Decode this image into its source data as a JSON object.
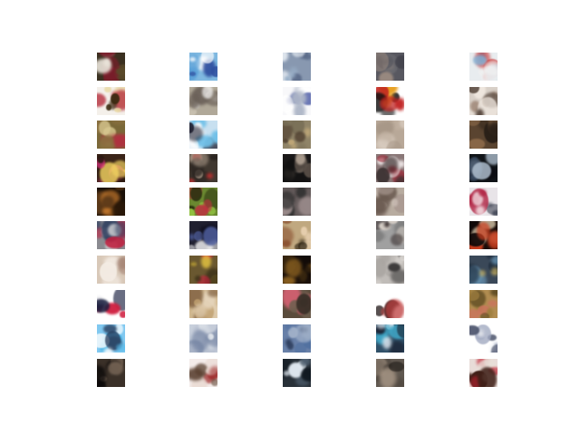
{
  "figure": {
    "grid": {
      "rows": 10,
      "cols": 5
    },
    "tiles": [
      {
        "palette": [
          "#5a4a2a",
          "#7b1d2a",
          "#e8e2d8"
        ],
        "bg": "#3a3020"
      },
      {
        "palette": [
          "#5aa0d8",
          "#ffffff",
          "#3050a0"
        ],
        "bg": "#7fb8e0"
      },
      {
        "palette": [
          "#9ab0c8",
          "#5a6a88",
          "#dfe6ee"
        ],
        "bg": "#8898b0"
      },
      {
        "palette": [
          "#6a6a70",
          "#9a8a80",
          "#40404a"
        ],
        "bg": "#585860"
      },
      {
        "palette": [
          "#c83030",
          "#7ab8e0",
          "#f0f0f0"
        ],
        "bg": "#e8ecef"
      },
      {
        "palette": [
          "#b02030",
          "#3a2a10",
          "#e8d8a0"
        ],
        "bg": "#f4f0ea"
      },
      {
        "palette": [
          "#c8c0b0",
          "#6a6058",
          "#ffffff"
        ],
        "bg": "#b0a898"
      },
      {
        "palette": [
          "#4050a0",
          "#ffffff",
          "#b0b8c8"
        ],
        "bg": "#f8f8fa"
      },
      {
        "palette": [
          "#101010",
          "#e8a020",
          "#c02020"
        ],
        "bg": "#ffffff"
      },
      {
        "palette": [
          "#a08878",
          "#f0e8e0",
          "#5a4a40"
        ],
        "bg": "#d8d0c8"
      },
      {
        "palette": [
          "#8a7040",
          "#b03040",
          "#d8c890"
        ],
        "bg": "#7a6838"
      },
      {
        "palette": [
          "#70c0e8",
          "#ffffff",
          "#202030"
        ],
        "bg": "#c8e0f0"
      },
      {
        "palette": [
          "#7a7058",
          "#c0a878",
          "#504030"
        ],
        "bg": "#908468"
      },
      {
        "palette": [
          "#c0b0a0",
          "#a89888",
          "#dcd0c4"
        ],
        "bg": "#b8a898"
      },
      {
        "palette": [
          "#4a3828",
          "#8a6848",
          "#2a2018"
        ],
        "bg": "#5a4430"
      },
      {
        "palette": [
          "#e03080",
          "#2a1810",
          "#f0d060"
        ],
        "bg": "#3a2418"
      },
      {
        "palette": [
          "#2a2420",
          "#a09080",
          "#c03030"
        ],
        "bg": "#403830"
      },
      {
        "palette": [
          "#101010",
          "#5a5048",
          "#c0b0a0"
        ],
        "bg": "#1a1818"
      },
      {
        "palette": [
          "#a02030",
          "#e8e0e0",
          "#3a3030"
        ],
        "bg": "#8a7878"
      },
      {
        "palette": [
          "#0a0a10",
          "#3a4a60",
          "#b0c0d0"
        ],
        "bg": "#101418"
      },
      {
        "palette": [
          "#2a1808",
          "#5a3818",
          "#d08030"
        ],
        "bg": "#1a1008"
      },
      {
        "palette": [
          "#90c040",
          "#c03040",
          "#2a3010"
        ],
        "bg": "#6a8830"
      },
      {
        "palette": [
          "#6a6060",
          "#a09090",
          "#303030"
        ],
        "bg": "#585050"
      },
      {
        "palette": [
          "#a89890",
          "#d8ccc4",
          "#6a5a50"
        ],
        "bg": "#b8aca0"
      },
      {
        "palette": [
          "#b02040",
          "#ffffff",
          "#3a4050"
        ],
        "bg": "#e8e4e8"
      },
      {
        "palette": [
          "#e0e0e0",
          "#c02040",
          "#304060"
        ],
        "bg": "#8a8a90"
      },
      {
        "palette": [
          "#101020",
          "#f0f0f0",
          "#5060a0"
        ],
        "bg": "#202030"
      },
      {
        "palette": [
          "#e8d0b0",
          "#8a5030",
          "#2a2010"
        ],
        "bg": "#c0a880"
      },
      {
        "palette": [
          "#808080",
          "#3a3030",
          "#d8d0c8"
        ],
        "bg": "#a0a0a0"
      },
      {
        "palette": [
          "#100808",
          "#f0e0c0",
          "#d04020"
        ],
        "bg": "#180c08"
      },
      {
        "palette": [
          "#e0d0c0",
          "#a88878",
          "#f4ece4"
        ],
        "bg": "#d8c8b8"
      },
      {
        "palette": [
          "#d02040",
          "#e0c040",
          "#3a3018"
        ],
        "bg": "#6a5830"
      },
      {
        "palette": [
          "#100a08",
          "#8a6020",
          "#3a2810"
        ],
        "bg": "#20140c"
      },
      {
        "palette": [
          "#d8d4d0",
          "#3a3838",
          "#a8a4a0"
        ],
        "bg": "#c0bcb8"
      },
      {
        "palette": [
          "#6a98b8",
          "#c8b060",
          "#1a2838"
        ],
        "bg": "#3a4858"
      },
      {
        "palette": [
          "#ffffff",
          "#1a2040",
          "#d02040"
        ],
        "bg": "#ffffff"
      },
      {
        "palette": [
          "#c0a070",
          "#e8d8c0",
          "#806040"
        ],
        "bg": "#d0b890"
      },
      {
        "palette": [
          "#706050",
          "#d06070",
          "#3a3028"
        ],
        "bg": "#5a4c3c"
      },
      {
        "palette": [
          "#2a2020",
          "#ffffff",
          "#c04040"
        ],
        "bg": "#ffffff"
      },
      {
        "palette": [
          "#a08040",
          "#d07060",
          "#5a4820"
        ],
        "bg": "#b08c50"
      },
      {
        "palette": [
          "#50b8e8",
          "#ffffff",
          "#2a4060"
        ],
        "bg": "#80c8f0"
      },
      {
        "palette": [
          "#b8c0d0",
          "#e8ecf0",
          "#7080a0"
        ],
        "bg": "#c8d0dc"
      },
      {
        "palette": [
          "#5070a0",
          "#a0b0c8",
          "#304060"
        ],
        "bg": "#6880a8"
      },
      {
        "palette": [
          "#40a8c8",
          "#1a2030",
          "#e0e8f0"
        ],
        "bg": "#305068"
      },
      {
        "palette": [
          "#a0a8c0",
          "#ffffff",
          "#505870"
        ],
        "bg": "#ffffff"
      },
      {
        "palette": [
          "#2a2420",
          "#7a6858",
          "#0a0808"
        ],
        "bg": "#3a3028"
      },
      {
        "palette": [
          "#e8d8d0",
          "#a03030",
          "#5a4030"
        ],
        "bg": "#f4ecea"
      },
      {
        "palette": [
          "#101820",
          "#e0e8f0",
          "#506070"
        ],
        "bg": "#283038"
      },
      {
        "palette": [
          "#504840",
          "#a09080",
          "#201c18"
        ],
        "bg": "#605850"
      },
      {
        "palette": [
          "#c02030",
          "#e8e0d8",
          "#402018"
        ],
        "bg": "#e8dcd8"
      }
    ]
  }
}
